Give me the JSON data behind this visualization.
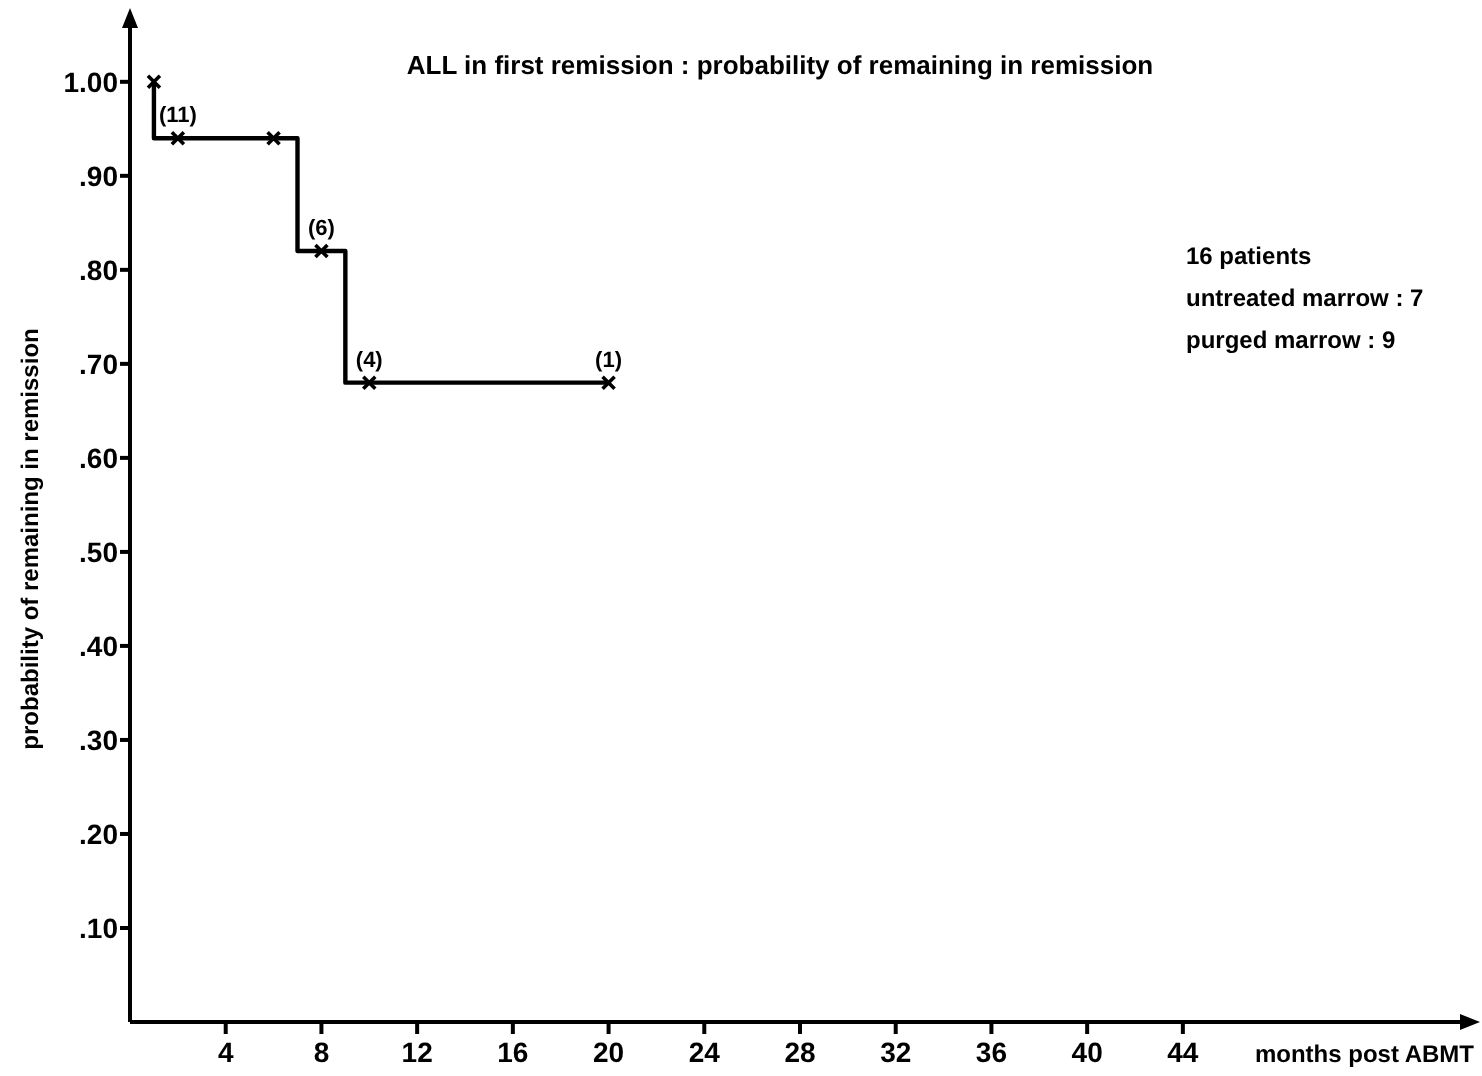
{
  "chart_data": {
    "type": "step",
    "title": "ALL in first remission : probability of remaining in remission",
    "xlabel": "months post ABMT",
    "ylabel": "probability of remaining in remission",
    "xlim": [
      0,
      56
    ],
    "xticks": [
      4,
      8,
      12,
      16,
      20,
      24,
      28,
      32,
      36,
      40,
      44
    ],
    "ylim": [
      0,
      1.07
    ],
    "yticks": [
      {
        "value": 1.0,
        "label": "1.00"
      },
      {
        "value": 0.9,
        "label": ".90"
      },
      {
        "value": 0.8,
        "label": ".80"
      },
      {
        "value": 0.7,
        "label": ".70"
      },
      {
        "value": 0.6,
        "label": ".60"
      },
      {
        "value": 0.5,
        "label": ".50"
      },
      {
        "value": 0.4,
        "label": ".40"
      },
      {
        "value": 0.3,
        "label": ".30"
      },
      {
        "value": 0.2,
        "label": ".20"
      },
      {
        "value": 0.1,
        "label": ".10"
      }
    ],
    "grid": false,
    "series": [
      {
        "color": "#000000",
        "x": [
          1,
          1,
          7,
          9,
          20
        ],
        "values": [
          1.0,
          0.94,
          0.82,
          0.68,
          0.68
        ],
        "marker": "none"
      },
      {
        "type": "scatter",
        "color": "#000000",
        "x": [
          1,
          2,
          6,
          8,
          10,
          20
        ],
        "values": [
          1.0,
          0.94,
          0.94,
          0.82,
          0.68,
          0.68
        ],
        "marker": "cross"
      }
    ],
    "annotations": [
      {
        "text": "(11)",
        "x": 2,
        "y": 0.94
      },
      {
        "text": "(6)",
        "x": 8,
        "y": 0.82
      },
      {
        "text": "(4)",
        "x": 10,
        "y": 0.68
      },
      {
        "text": "(1)",
        "x": 20,
        "y": 0.68
      },
      "16 patients",
      "untreated marrow : 7",
      "purged marrow : 9"
    ]
  }
}
